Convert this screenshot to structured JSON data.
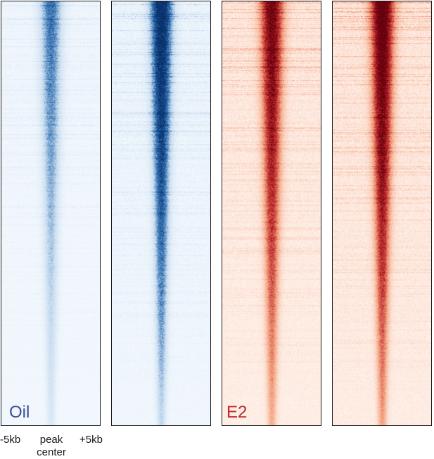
{
  "chart_data": {
    "type": "heatmap",
    "panels": [
      {
        "id": "p1",
        "condition": "Oil",
        "colormap": "blues",
        "relative_intensity": 0.55
      },
      {
        "id": "p2",
        "condition": "Oil",
        "colormap": "blues",
        "relative_intensity": 0.95
      },
      {
        "id": "p3",
        "condition": "E2",
        "colormap": "reds",
        "relative_intensity": 0.85
      },
      {
        "id": "p4",
        "condition": "E2",
        "colormap": "reds",
        "relative_intensity": 1.0
      }
    ],
    "condition_labels": [
      {
        "text": "Oil",
        "color": "#3a4f9a"
      },
      {
        "text": "E2",
        "color": "#c0282a"
      }
    ],
    "x_tick_labels": [
      "-5kb",
      "peak\ncenter",
      "+5kb"
    ],
    "x_range_kb": [
      -5,
      5
    ],
    "rows_sorted_by": "signal descending",
    "colors": {
      "blue_max": "#08306b",
      "blue_mid": "#2c6cb0",
      "blue_min": "#f4f9fe",
      "red_max": "#67000d",
      "red_mid": "#c0282a",
      "red_min": "#fff4ee"
    }
  }
}
